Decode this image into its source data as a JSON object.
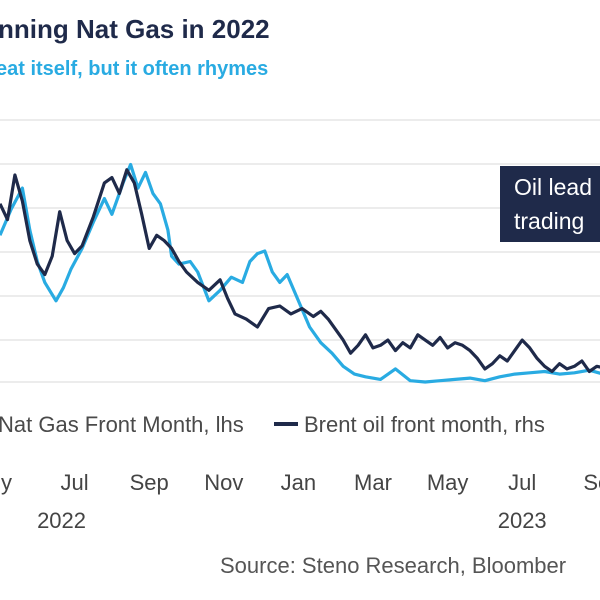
{
  "title": "nning Nat Gas in 2022",
  "subtitle": "eat itself, but it often rhymes",
  "annotation": {
    "line1": "Oil lead",
    "line2": "trading"
  },
  "source": "Source: Steno Research, Bloomber",
  "colors": {
    "nat_gas": "#29abe2",
    "brent": "#1f2a4a",
    "grid": "#d9d9d9",
    "annotation_bg": "#1f2a4a",
    "subtitle": "#29abe2"
  },
  "chart_data": {
    "type": "line",
    "title": "nning Nat Gas in 2022",
    "subtitle": "eat itself, but it often rhymes",
    "x_unit": "months since start of May 2022",
    "xlim": [
      0,
      16.3
    ],
    "ylim": [
      0,
      10
    ],
    "grid": true,
    "legend_position": "bottom",
    "x_ticks": [
      {
        "label": "y",
        "x": 0
      },
      {
        "label": "Jul",
        "x": 2
      },
      {
        "label": "Sep",
        "x": 4
      },
      {
        "label": "Nov",
        "x": 6
      },
      {
        "label": "Jan",
        "x": 8
      },
      {
        "label": "Mar",
        "x": 10
      },
      {
        "label": "May",
        "x": 12
      },
      {
        "label": "Jul",
        "x": 14
      },
      {
        "label": "Se",
        "x": 16
      }
    ],
    "year_labels": [
      {
        "label": "2022",
        "x": 1.65
      },
      {
        "label": "2023",
        "x": 14
      }
    ],
    "series": [
      {
        "name": "Nat Gas Front Month, lhs",
        "color": "#29abe2",
        "points": [
          [
            0,
            5.6
          ],
          [
            0.3,
            6.6
          ],
          [
            0.6,
            7.4
          ],
          [
            0.8,
            5.8
          ],
          [
            1.0,
            4.6
          ],
          [
            1.2,
            3.8
          ],
          [
            1.5,
            3.1
          ],
          [
            1.7,
            3.6
          ],
          [
            1.9,
            4.3
          ],
          [
            2.2,
            5.1
          ],
          [
            2.5,
            6.1
          ],
          [
            2.8,
            7.0
          ],
          [
            3.0,
            6.4
          ],
          [
            3.3,
            7.6
          ],
          [
            3.5,
            8.3
          ],
          [
            3.7,
            7.4
          ],
          [
            3.9,
            8.0
          ],
          [
            4.1,
            7.2
          ],
          [
            4.3,
            6.8
          ],
          [
            4.5,
            5.8
          ],
          [
            4.6,
            4.8
          ],
          [
            4.8,
            4.5
          ],
          [
            5.1,
            4.6
          ],
          [
            5.3,
            4.2
          ],
          [
            5.6,
            3.1
          ],
          [
            5.9,
            3.5
          ],
          [
            6.2,
            4.0
          ],
          [
            6.5,
            3.8
          ],
          [
            6.7,
            4.6
          ],
          [
            6.9,
            4.9
          ],
          [
            7.1,
            5.0
          ],
          [
            7.3,
            4.2
          ],
          [
            7.5,
            3.8
          ],
          [
            7.7,
            4.1
          ],
          [
            8.0,
            3.1
          ],
          [
            8.3,
            2.1
          ],
          [
            8.6,
            1.5
          ],
          [
            8.9,
            1.1
          ],
          [
            9.2,
            0.6
          ],
          [
            9.5,
            0.3
          ],
          [
            9.8,
            0.2
          ],
          [
            10.2,
            0.1
          ],
          [
            10.6,
            0.5
          ],
          [
            11.0,
            0.05
          ],
          [
            11.4,
            0.0
          ],
          [
            11.8,
            0.05
          ],
          [
            12.2,
            0.1
          ],
          [
            12.6,
            0.15
          ],
          [
            13.0,
            0.05
          ],
          [
            13.4,
            0.2
          ],
          [
            13.8,
            0.3
          ],
          [
            14.2,
            0.35
          ],
          [
            14.6,
            0.4
          ],
          [
            15.0,
            0.3
          ],
          [
            15.4,
            0.35
          ],
          [
            15.8,
            0.45
          ],
          [
            16.3,
            0.25
          ]
        ]
      },
      {
        "name": "Brent oil front month, rhs",
        "color": "#1f2a4a",
        "points": [
          [
            0,
            6.8
          ],
          [
            0.2,
            6.2
          ],
          [
            0.4,
            7.9
          ],
          [
            0.6,
            6.9
          ],
          [
            0.8,
            5.4
          ],
          [
            1.0,
            4.5
          ],
          [
            1.2,
            4.1
          ],
          [
            1.4,
            4.8
          ],
          [
            1.6,
            6.5
          ],
          [
            1.8,
            5.4
          ],
          [
            2.0,
            4.9
          ],
          [
            2.2,
            5.2
          ],
          [
            2.5,
            6.3
          ],
          [
            2.8,
            7.6
          ],
          [
            3.0,
            7.8
          ],
          [
            3.2,
            7.2
          ],
          [
            3.4,
            8.1
          ],
          [
            3.6,
            7.6
          ],
          [
            3.8,
            6.4
          ],
          [
            4.0,
            5.1
          ],
          [
            4.2,
            5.6
          ],
          [
            4.4,
            5.4
          ],
          [
            4.6,
            5.1
          ],
          [
            4.8,
            4.6
          ],
          [
            5.0,
            4.2
          ],
          [
            5.3,
            3.8
          ],
          [
            5.6,
            3.5
          ],
          [
            5.9,
            3.9
          ],
          [
            6.1,
            3.2
          ],
          [
            6.3,
            2.6
          ],
          [
            6.6,
            2.4
          ],
          [
            6.9,
            2.1
          ],
          [
            7.2,
            2.8
          ],
          [
            7.5,
            2.9
          ],
          [
            7.8,
            2.6
          ],
          [
            8.1,
            2.8
          ],
          [
            8.4,
            2.5
          ],
          [
            8.6,
            2.7
          ],
          [
            8.8,
            2.4
          ],
          [
            9.0,
            2.0
          ],
          [
            9.2,
            1.6
          ],
          [
            9.4,
            1.1
          ],
          [
            9.6,
            1.4
          ],
          [
            9.8,
            1.8
          ],
          [
            10.0,
            1.3
          ],
          [
            10.2,
            1.4
          ],
          [
            10.4,
            1.6
          ],
          [
            10.6,
            1.2
          ],
          [
            10.8,
            1.5
          ],
          [
            11.0,
            1.3
          ],
          [
            11.2,
            1.8
          ],
          [
            11.4,
            1.6
          ],
          [
            11.6,
            1.4
          ],
          [
            11.8,
            1.7
          ],
          [
            12.0,
            1.3
          ],
          [
            12.2,
            1.5
          ],
          [
            12.4,
            1.4
          ],
          [
            12.6,
            1.2
          ],
          [
            12.8,
            0.9
          ],
          [
            13.0,
            0.5
          ],
          [
            13.2,
            0.7
          ],
          [
            13.4,
            1.0
          ],
          [
            13.6,
            0.8
          ],
          [
            13.8,
            1.2
          ],
          [
            14.0,
            1.6
          ],
          [
            14.2,
            1.3
          ],
          [
            14.4,
            0.9
          ],
          [
            14.6,
            0.6
          ],
          [
            14.8,
            0.4
          ],
          [
            15.0,
            0.7
          ],
          [
            15.2,
            0.5
          ],
          [
            15.4,
            0.6
          ],
          [
            15.6,
            0.8
          ],
          [
            15.8,
            0.4
          ],
          [
            16.0,
            0.6
          ],
          [
            16.3,
            0.5
          ]
        ]
      }
    ]
  }
}
